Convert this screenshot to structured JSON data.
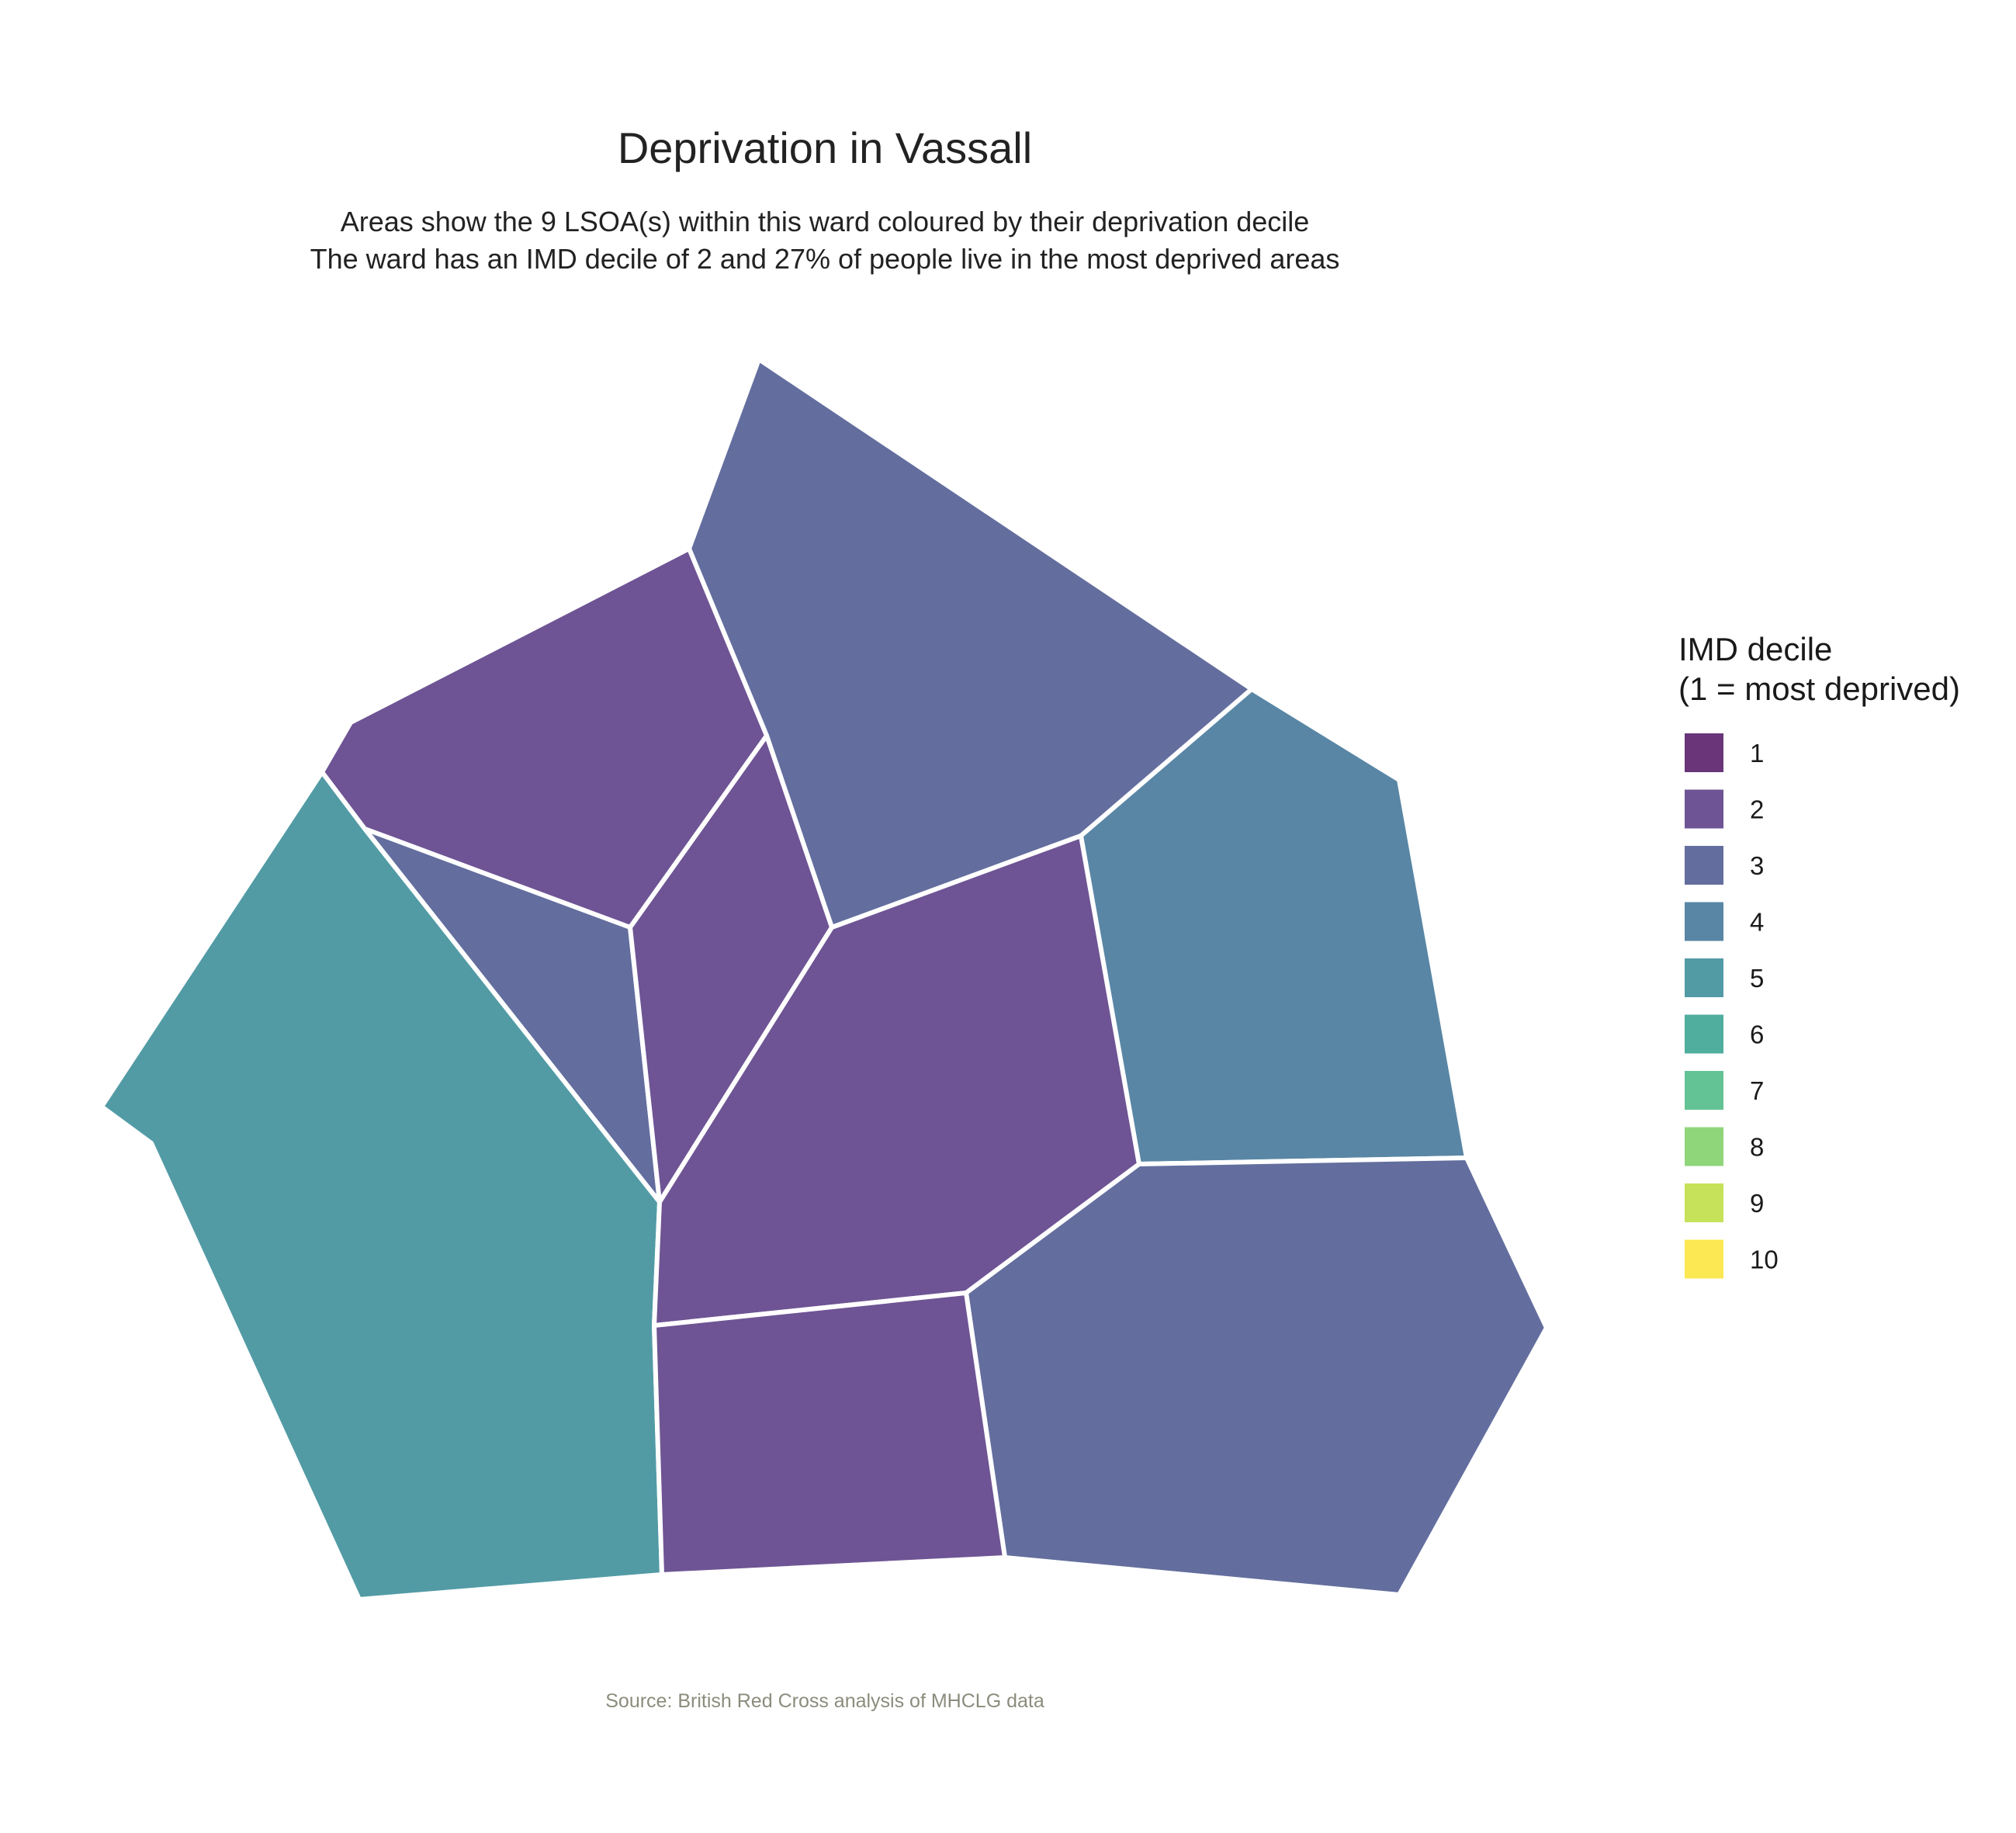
{
  "title": "Deprivation in Vassall",
  "subtitle": [
    "Areas show the 9 LSOA(s) within this ward coloured by their deprivation decile",
    "The ward has an IMD decile of 2 and 27% of people live in the most deprived areas"
  ],
  "caption": "Source: British Red Cross analysis of MHCLG data",
  "legend": {
    "title": [
      "IMD decile",
      "(1 = most deprived)"
    ],
    "items": [
      {
        "label": "1",
        "color": "#6a3679"
      },
      {
        "label": "2",
        "color": "#6e5494"
      },
      {
        "label": "3",
        "color": "#636e9e"
      },
      {
        "label": "4",
        "color": "#5986a5"
      },
      {
        "label": "5",
        "color": "#529ba5"
      },
      {
        "label": "6",
        "color": "#4fae9d"
      },
      {
        "label": "7",
        "color": "#63c394"
      },
      {
        "label": "8",
        "color": "#8fd579"
      },
      {
        "label": "9",
        "color": "#c6e25a"
      },
      {
        "label": "10",
        "color": "#fbe852"
      }
    ]
  },
  "areas": [
    {
      "decile": 3
    },
    {
      "decile": 2
    },
    {
      "decile": 3
    },
    {
      "decile": 2
    },
    {
      "decile": 5
    },
    {
      "decile": 2
    },
    {
      "decile": 4
    },
    {
      "decile": 3
    },
    {
      "decile": 2
    }
  ]
}
